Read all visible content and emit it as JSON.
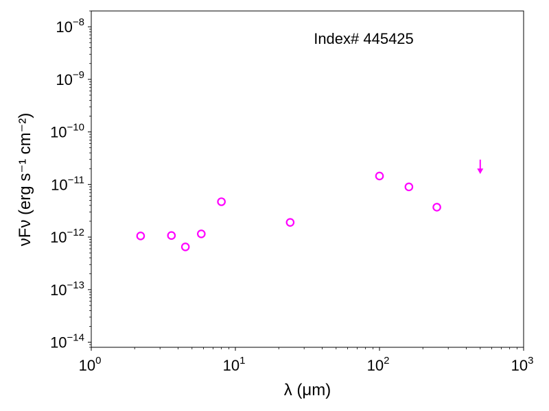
{
  "chart_data": {
    "type": "scatter",
    "annotation": "Index# 445425",
    "xlabel": "λ (μm)",
    "ylabel": "νFν (erg s⁻¹ cm⁻²)",
    "xscale": "log",
    "yscale": "log",
    "xlim": [
      1,
      1000
    ],
    "ylim": [
      8e-15,
      2e-08
    ],
    "x_ticks": [
      {
        "value": 1,
        "base": "10",
        "exp": "0"
      },
      {
        "value": 10,
        "base": "10",
        "exp": "1"
      },
      {
        "value": 100,
        "base": "10",
        "exp": "2"
      },
      {
        "value": 1000,
        "base": "10",
        "exp": "3"
      }
    ],
    "y_ticks": [
      {
        "value": 1e-14,
        "base": "10",
        "exp": "−14"
      },
      {
        "value": 1e-13,
        "base": "10",
        "exp": "−13"
      },
      {
        "value": 1e-12,
        "base": "10",
        "exp": "−12"
      },
      {
        "value": 1e-11,
        "base": "10",
        "exp": "−11"
      },
      {
        "value": 1e-10,
        "base": "10",
        "exp": "−10"
      },
      {
        "value": 1e-09,
        "base": "10",
        "exp": "−9"
      },
      {
        "value": 1e-08,
        "base": "10",
        "exp": "−8"
      }
    ],
    "color": "#ff00ff",
    "points": [
      {
        "x": 2.2,
        "y": 1.05e-12
      },
      {
        "x": 3.6,
        "y": 1.07e-12
      },
      {
        "x": 4.5,
        "y": 6.5e-13
      },
      {
        "x": 5.8,
        "y": 1.15e-12
      },
      {
        "x": 8.0,
        "y": 4.7e-12
      },
      {
        "x": 24.0,
        "y": 1.9e-12
      },
      {
        "x": 100.0,
        "y": 1.45e-11
      },
      {
        "x": 160.0,
        "y": 9e-12
      },
      {
        "x": 250.0,
        "y": 3.7e-12
      }
    ],
    "upper_limits": [
      {
        "x": 500.0,
        "y": 2.2e-11
      }
    ],
    "grid": false
  }
}
